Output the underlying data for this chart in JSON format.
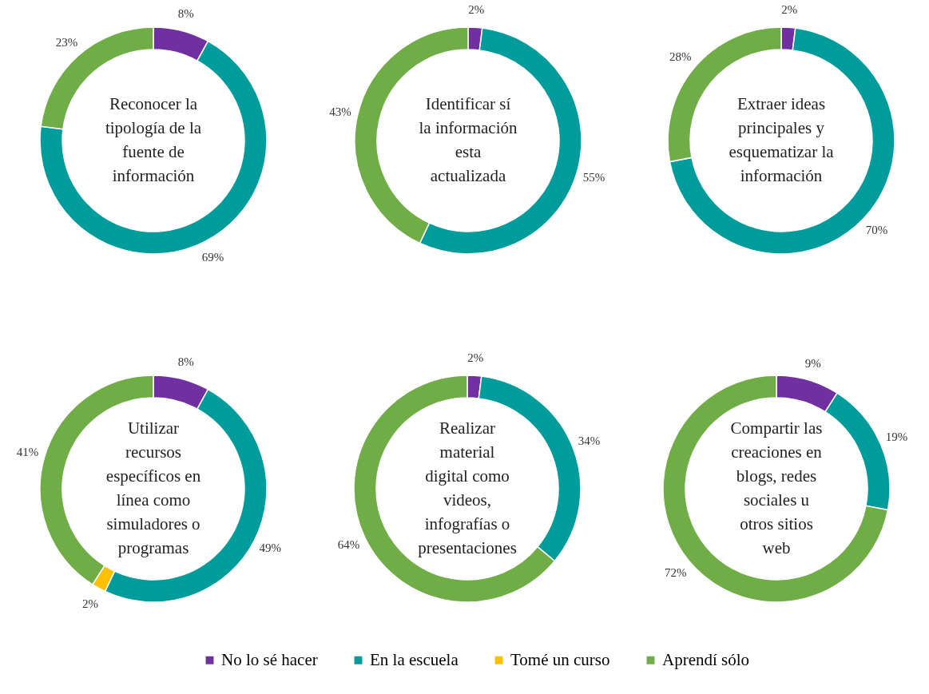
{
  "chart_data": [
    {
      "type": "donut",
      "title": "Reconocer la tipología de la fuente de información",
      "categories": [
        "No lo sé hacer",
        "En la escuela",
        "Tomé un curso",
        "Aprendí sólo"
      ],
      "values": [
        8,
        69,
        0,
        23
      ],
      "value_labels": [
        "8%",
        "69%",
        null,
        "23%"
      ],
      "colors": [
        "#7030a0",
        "#009b9b",
        "#ffc000",
        "#70ad47"
      ],
      "legend": "bottom"
    },
    {
      "type": "donut",
      "title": "Identificar sí la información esta actualizada",
      "categories": [
        null,
        null,
        null,
        null
      ],
      "values": [
        2,
        55,
        0,
        43
      ],
      "value_labels": [
        "2%",
        "55%",
        null,
        "43%"
      ],
      "colors": [
        "#7030a0",
        "#009b9b",
        "#ffc000",
        "#70ad47"
      ]
    },
    {
      "type": "donut",
      "title": "Extraer ideas principales y esquematizar la información",
      "categories": [
        null,
        null,
        null,
        null
      ],
      "values": [
        2,
        70,
        0,
        28
      ],
      "value_labels": [
        "2%",
        "70%",
        null,
        "28%"
      ],
      "colors": [
        "#7030a0",
        "#009b9b",
        "#ffc000",
        "#70ad47"
      ]
    },
    {
      "type": "donut",
      "title": "Utilizar recursos específicos en línea como simuladores o programas",
      "categories": [
        null,
        null,
        null,
        null
      ],
      "values": [
        8,
        49,
        2,
        41
      ],
      "value_labels": [
        "8%",
        "49%",
        "2%",
        "41%"
      ],
      "colors": [
        "#7030a0",
        "#009b9b",
        "#ffc000",
        "#70ad47"
      ]
    },
    {
      "type": "donut",
      "title": "Realizar material digital como videos, infografías o presentaciones",
      "categories": [
        null,
        null,
        null,
        null
      ],
      "values": [
        2,
        34,
        0,
        64
      ],
      "value_labels": [
        "2%",
        "34%",
        null,
        "64%"
      ],
      "colors": [
        "#7030a0",
        "#009b9b",
        "#ffc000",
        "#70ad47"
      ]
    },
    {
      "type": "donut",
      "title": "Compartir las creaciones en blogs, redes sociales u otros sitios web",
      "categories": [
        null,
        null,
        null,
        null
      ],
      "values": [
        9,
        19,
        0,
        72
      ],
      "value_labels": [
        "9%",
        "19%",
        null,
        "72%"
      ],
      "colors": [
        "#7030a0",
        "#009b9b",
        "#ffc000",
        "#70ad47"
      ]
    }
  ]
}
